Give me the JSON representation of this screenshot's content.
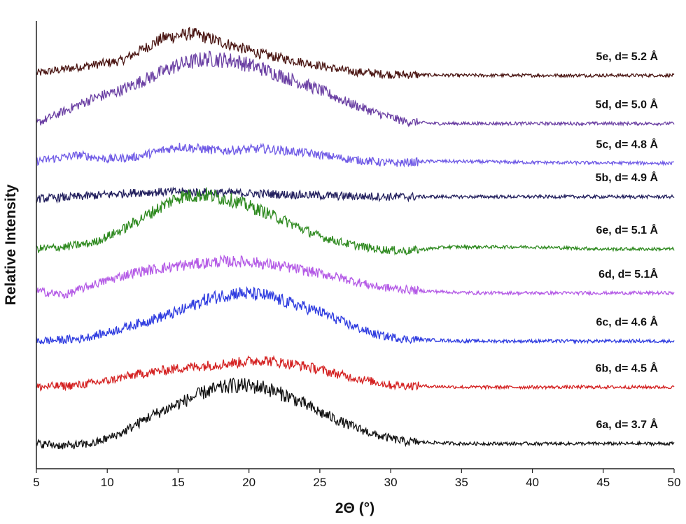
{
  "chart_data": {
    "type": "line",
    "xlabel": "2Θ (°)",
    "ylabel": "Relative Intensity",
    "xlim": [
      5,
      50
    ],
    "x_ticks": [
      5,
      10,
      15,
      20,
      25,
      30,
      35,
      40,
      45,
      50
    ],
    "y_ticks_shown": false,
    "grid": false,
    "legend": "inline labels at right end of each trace",
    "series": [
      {
        "name": "5e, d= 5.2 Å",
        "color": "#4a1512",
        "offset": 8.1,
        "points": [
          [
            5,
            0.05
          ],
          [
            8,
            0.2
          ],
          [
            11,
            0.35
          ],
          [
            14,
            0.9
          ],
          [
            16,
            1.0
          ],
          [
            18,
            0.8
          ],
          [
            21,
            0.5
          ],
          [
            24,
            0.3
          ],
          [
            27,
            0.1
          ],
          [
            30,
            0.02
          ],
          [
            35,
            0
          ],
          [
            50,
            0
          ]
        ]
      },
      {
        "name": "5d, d= 5.0 Å",
        "color": "#6a3fa3",
        "offset": 6.95,
        "points": [
          [
            5,
            0
          ],
          [
            7,
            0.3
          ],
          [
            9,
            0.6
          ],
          [
            11,
            0.8
          ],
          [
            13,
            1.1
          ],
          [
            15,
            1.4
          ],
          [
            17,
            1.55
          ],
          [
            19,
            1.5
          ],
          [
            21,
            1.3
          ],
          [
            23,
            1.05
          ],
          [
            25,
            0.8
          ],
          [
            27,
            0.5
          ],
          [
            29,
            0.25
          ],
          [
            31,
            0.05
          ],
          [
            33,
            0
          ],
          [
            50,
            0
          ]
        ]
      },
      {
        "name": "5c, d= 4.8 Å",
        "color": "#6f5ae6",
        "offset": 6.0,
        "points": [
          [
            5,
            0.05
          ],
          [
            8,
            0.2
          ],
          [
            10,
            0.1
          ],
          [
            12,
            0.15
          ],
          [
            15,
            0.4
          ],
          [
            18,
            0.3
          ],
          [
            21,
            0.35
          ],
          [
            24,
            0.25
          ],
          [
            27,
            0.1
          ],
          [
            30,
            0.0
          ],
          [
            33,
            0.05
          ],
          [
            40,
            0.02
          ],
          [
            50,
            0
          ]
        ]
      },
      {
        "name": "5b, d= 4.9 Å",
        "color": "#23205e",
        "offset": 5.2,
        "points": [
          [
            5,
            -0.05
          ],
          [
            8,
            0
          ],
          [
            12,
            0.1
          ],
          [
            15,
            0.12
          ],
          [
            18,
            0.1
          ],
          [
            22,
            0.06
          ],
          [
            26,
            0.02
          ],
          [
            30,
            0
          ],
          [
            50,
            0
          ]
        ]
      },
      {
        "name": "6e, d= 5.1 Å",
        "color": "#2f8a20",
        "offset": 3.95,
        "points": [
          [
            5,
            0
          ],
          [
            7,
            0.05
          ],
          [
            9,
            0.15
          ],
          [
            11,
            0.45
          ],
          [
            13,
            0.85
          ],
          [
            15,
            1.25
          ],
          [
            17,
            1.3
          ],
          [
            19,
            1.15
          ],
          [
            21,
            0.9
          ],
          [
            23,
            0.6
          ],
          [
            25,
            0.3
          ],
          [
            27,
            0.12
          ],
          [
            29,
            0
          ],
          [
            31,
            -0.05
          ],
          [
            34,
            0.05
          ],
          [
            40,
            0.05
          ],
          [
            45,
            0
          ],
          [
            50,
            0
          ]
        ]
      },
      {
        "name": "6d, d= 5.1Å",
        "color": "#b45ae6",
        "offset": 2.9,
        "points": [
          [
            5,
            0.05
          ],
          [
            7,
            -0.05
          ],
          [
            9,
            0.2
          ],
          [
            12,
            0.5
          ],
          [
            15,
            0.65
          ],
          [
            18,
            0.75
          ],
          [
            20,
            0.75
          ],
          [
            23,
            0.6
          ],
          [
            26,
            0.4
          ],
          [
            29,
            0.15
          ],
          [
            32,
            0.05
          ],
          [
            36,
            0
          ],
          [
            50,
            0
          ]
        ]
      },
      {
        "name": "6c, d= 4.6 Å",
        "color": "#2f3ce0",
        "offset": 1.75,
        "points": [
          [
            5,
            0
          ],
          [
            8,
            0.05
          ],
          [
            10,
            0.2
          ],
          [
            13,
            0.5
          ],
          [
            15,
            0.7
          ],
          [
            17,
            1.0
          ],
          [
            19,
            1.15
          ],
          [
            21,
            1.1
          ],
          [
            23,
            0.9
          ],
          [
            25,
            0.7
          ],
          [
            27,
            0.4
          ],
          [
            29,
            0.15
          ],
          [
            31,
            0.05
          ],
          [
            35,
            0
          ],
          [
            50,
            0
          ]
        ]
      },
      {
        "name": "6b, d= 4.5 Å",
        "color": "#d42020",
        "offset": 0.65,
        "points": [
          [
            5,
            0
          ],
          [
            8,
            0.05
          ],
          [
            10,
            0.15
          ],
          [
            12,
            0.3
          ],
          [
            15,
            0.45
          ],
          [
            18,
            0.55
          ],
          [
            21,
            0.65
          ],
          [
            24,
            0.5
          ],
          [
            27,
            0.25
          ],
          [
            30,
            0.05
          ],
          [
            35,
            0
          ],
          [
            50,
            0
          ]
        ]
      },
      {
        "name": "6a, d= 3.7 Å",
        "color": "#111111",
        "offset": -0.7,
        "points": [
          [
            5,
            0
          ],
          [
            7,
            -0.05
          ],
          [
            9,
            0
          ],
          [
            11,
            0.25
          ],
          [
            13,
            0.65
          ],
          [
            15,
            0.95
          ],
          [
            17,
            1.25
          ],
          [
            19,
            1.4
          ],
          [
            21,
            1.35
          ],
          [
            23,
            1.1
          ],
          [
            25,
            0.75
          ],
          [
            27,
            0.45
          ],
          [
            29,
            0.2
          ],
          [
            31,
            0.05
          ],
          [
            35,
            0
          ],
          [
            50,
            0
          ]
        ]
      }
    ]
  }
}
